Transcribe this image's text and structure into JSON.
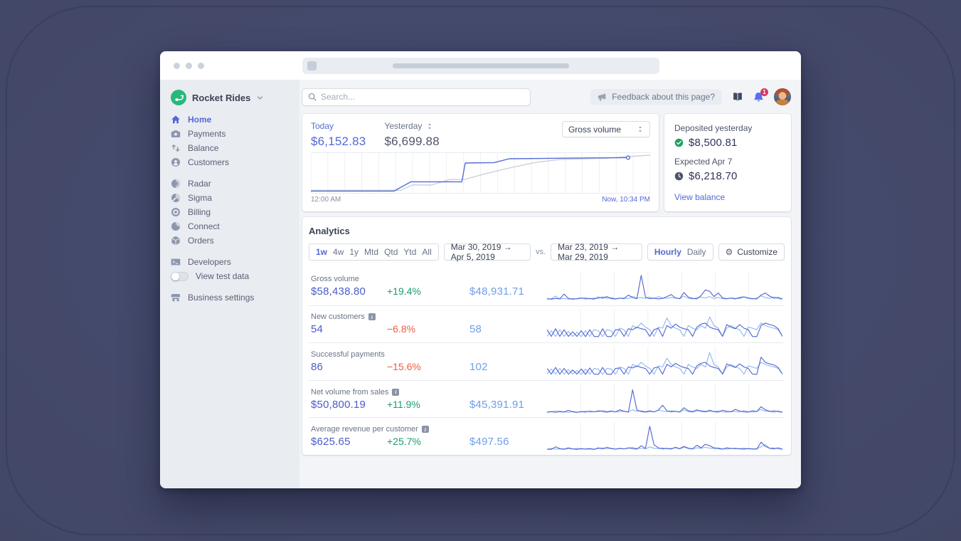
{
  "header": {
    "search_placeholder": "Search...",
    "feedback_label": "Feedback about this page?",
    "notification_count": "1"
  },
  "sidebar": {
    "account_name": "Rocket Rides",
    "groups": [
      [
        {
          "label": "Home",
          "icon": "home-icon",
          "active": true
        },
        {
          "label": "Payments",
          "icon": "payments-icon"
        },
        {
          "label": "Balance",
          "icon": "balance-icon"
        },
        {
          "label": "Customers",
          "icon": "customers-icon"
        }
      ],
      [
        {
          "label": "Radar",
          "icon": "radar-icon"
        },
        {
          "label": "Sigma",
          "icon": "sigma-icon"
        },
        {
          "label": "Billing",
          "icon": "billing-icon"
        },
        {
          "label": "Connect",
          "icon": "connect-icon"
        },
        {
          "label": "Orders",
          "icon": "orders-icon"
        }
      ],
      [
        {
          "label": "Developers",
          "icon": "developers-icon"
        },
        {
          "label": "View test data",
          "toggle": true
        }
      ],
      [
        {
          "label": "Business settings",
          "icon": "business-settings-icon"
        }
      ]
    ]
  },
  "overview": {
    "today_label": "Today",
    "today_value": "$6,152.83",
    "yesterday_label": "Yesterday",
    "yesterday_value": "$6,699.88",
    "metric_select": "Gross volume",
    "x_start": "12:00 AM",
    "x_end": "Now, 10:34 PM"
  },
  "deposits": {
    "deposited_label": "Deposited yesterday",
    "deposited_value": "$8,500.81",
    "expected_label": "Expected Apr 7",
    "expected_value": "$6,218.70",
    "link_label": "View balance"
  },
  "analytics": {
    "title": "Analytics",
    "ranges": [
      "1w",
      "4w",
      "1y",
      "Mtd",
      "Qtd",
      "Ytd",
      "All"
    ],
    "active_range": "1w",
    "date_range_current": "Mar 30, 2019 →  Apr 5, 2019",
    "vs_label": "vs.",
    "date_range_compare": "Mar 23, 2019 → Mar 29, 2019",
    "granularity": [
      "Hourly",
      "Daily"
    ],
    "active_granularity": "Hourly",
    "customize_label": "Customize",
    "metrics": [
      {
        "label": "Gross volume",
        "info": false,
        "value": "$58,438.80",
        "delta": "+19.4%",
        "delta_dir": "up",
        "compare": "$48,931.71"
      },
      {
        "label": "New customers",
        "info": true,
        "value": "54",
        "delta": "−6.8%",
        "delta_dir": "down",
        "compare": "58"
      },
      {
        "label": "Successful payments",
        "info": false,
        "value": "86",
        "delta": "−15.6%",
        "delta_dir": "down",
        "compare": "102"
      },
      {
        "label": "Net volume from sales",
        "info": true,
        "value": "$50,800.19",
        "delta": "+11.9%",
        "delta_dir": "up",
        "compare": "$45,391.91"
      },
      {
        "label": "Average revenue per customer",
        "info": true,
        "value": "$625.65",
        "delta": "+25.7%",
        "delta_dir": "up",
        "compare": "$497.56"
      }
    ]
  },
  "colors": {
    "accent": "#5469d4",
    "positive": "#1a9c6b",
    "negative": "#ec5e41",
    "compare_blue": "#6f9fe8",
    "spark_current": "#4f63cf",
    "spark_previous": "#8fb5ef",
    "today_line": "#556cd6",
    "yesterday_line": "#c9d2dc"
  },
  "chart_data": {
    "overview": {
      "type": "line",
      "title": "Gross volume, today vs yesterday",
      "x_start": "12:00 AM",
      "x_end": "Now, 10:34 PM",
      "gridlines": 20,
      "series": [
        {
          "name": "Yesterday",
          "color": "#c9d2dc",
          "points": [
            [
              0,
              0.05
            ],
            [
              0.265,
              0.05
            ],
            [
              0.3,
              0.19
            ],
            [
              0.355,
              0.185
            ],
            [
              0.41,
              0.33
            ],
            [
              0.455,
              0.335
            ],
            [
              0.505,
              0.46
            ],
            [
              0.59,
              0.64
            ],
            [
              0.665,
              0.78
            ],
            [
              0.735,
              0.85
            ],
            [
              0.87,
              0.885
            ],
            [
              1,
              0.965
            ]
          ]
        },
        {
          "name": "Today",
          "color": "#556cd6",
          "marker_end": true,
          "points": [
            [
              0,
              0.03
            ],
            [
              0.245,
              0.03
            ],
            [
              0.295,
              0.27
            ],
            [
              0.445,
              0.27
            ],
            [
              0.455,
              0.76
            ],
            [
              0.54,
              0.77
            ],
            [
              0.585,
              0.87
            ],
            [
              0.75,
              0.885
            ],
            [
              0.935,
              0.9
            ]
          ]
        }
      ]
    },
    "sparklines": [
      {
        "type": "line",
        "metric": "Gross volume",
        "gridlines": 7,
        "previous": [
          0.02,
          0.04,
          0.14,
          0.03,
          0.05,
          0.02,
          0.04,
          0.03,
          0.05,
          0.08,
          0.03,
          0.06,
          0.04,
          0.12,
          0.05,
          0.09,
          0.04,
          0.05,
          0.07,
          0.04,
          0.13,
          0.06,
          0.08,
          0.05,
          0.1,
          0.04,
          0.12,
          0.07,
          0.05,
          0.09,
          0.06,
          0.04,
          0.14,
          0.05,
          0.03,
          0.08,
          0.1,
          0.07,
          0.12,
          0.05,
          0.09,
          0.04,
          0.03,
          0.07,
          0.05,
          0.04,
          0.1,
          0.05,
          0.03,
          0.06,
          0.15,
          0.08,
          0.05,
          0.11,
          0.04,
          0.02
        ],
        "current": [
          0.04,
          0.02,
          0.05,
          0.03,
          0.22,
          0.05,
          0.02,
          0.04,
          0.07,
          0.03,
          0.05,
          0.02,
          0.1,
          0.06,
          0.12,
          0.04,
          0.03,
          0.06,
          0.04,
          0.18,
          0.08,
          0.04,
          0.95,
          0.1,
          0.04,
          0.06,
          0.03,
          0.05,
          0.12,
          0.2,
          0.07,
          0.04,
          0.28,
          0.1,
          0.05,
          0.03,
          0.16,
          0.38,
          0.33,
          0.12,
          0.26,
          0.07,
          0.04,
          0.06,
          0.03,
          0.09,
          0.11,
          0.07,
          0.04,
          0.03,
          0.18,
          0.26,
          0.14,
          0.06,
          0.09,
          0.03
        ]
      },
      {
        "type": "line",
        "metric": "New customers",
        "gridlines": 7,
        "previous": [
          0.04,
          0.26,
          0.04,
          0.3,
          0.04,
          0.24,
          0.04,
          0.2,
          0.03,
          0.26,
          0.04,
          0.3,
          0.26,
          0.03,
          0.3,
          0.26,
          0.04,
          0.36,
          0.3,
          0.04,
          0.46,
          0.36,
          0.56,
          0.4,
          0.3,
          0.04,
          0.4,
          0.36,
          0.76,
          0.46,
          0.36,
          0.3,
          0.04,
          0.46,
          0.36,
          0.3,
          0.46,
          0.36,
          0.8,
          0.46,
          0.36,
          0.04,
          0.36,
          0.46,
          0.36,
          0.3,
          0.04,
          0.4,
          0.36,
          0.3,
          0.56,
          0.46,
          0.4,
          0.36,
          0.3,
          0.04
        ],
        "current": [
          0.3,
          0.04,
          0.34,
          0.04,
          0.3,
          0.04,
          0.22,
          0.04,
          0.26,
          0.03,
          0.3,
          0.04,
          0.03,
          0.34,
          0.04,
          0.03,
          0.3,
          0.3,
          0.04,
          0.34,
          0.3,
          0.4,
          0.34,
          0.3,
          0.04,
          0.3,
          0.36,
          0.04,
          0.46,
          0.36,
          0.52,
          0.4,
          0.34,
          0.3,
          0.04,
          0.4,
          0.52,
          0.56,
          0.4,
          0.34,
          0.3,
          0.04,
          0.5,
          0.4,
          0.34,
          0.5,
          0.36,
          0.3,
          0.04,
          0.03,
          0.46,
          0.56,
          0.5,
          0.46,
          0.34,
          0.04
        ]
      },
      {
        "type": "line",
        "metric": "Successful payments",
        "gridlines": 7,
        "previous": [
          0.04,
          0.24,
          0.04,
          0.26,
          0.04,
          0.22,
          0.04,
          0.18,
          0.03,
          0.24,
          0.04,
          0.26,
          0.24,
          0.03,
          0.26,
          0.24,
          0.04,
          0.32,
          0.26,
          0.04,
          0.42,
          0.32,
          0.5,
          0.36,
          0.26,
          0.04,
          0.36,
          0.32,
          0.66,
          0.42,
          0.32,
          0.26,
          0.04,
          0.42,
          0.32,
          0.26,
          0.42,
          0.32,
          0.88,
          0.42,
          0.32,
          0.04,
          0.32,
          0.42,
          0.32,
          0.26,
          0.04,
          0.36,
          0.32,
          0.26,
          0.5,
          0.42,
          0.36,
          0.32,
          0.26,
          0.04
        ],
        "current": [
          0.26,
          0.04,
          0.3,
          0.04,
          0.26,
          0.04,
          0.2,
          0.04,
          0.24,
          0.03,
          0.28,
          0.04,
          0.03,
          0.3,
          0.04,
          0.03,
          0.26,
          0.28,
          0.04,
          0.32,
          0.28,
          0.36,
          0.3,
          0.26,
          0.04,
          0.28,
          0.32,
          0.04,
          0.42,
          0.32,
          0.46,
          0.36,
          0.3,
          0.26,
          0.04,
          0.36,
          0.46,
          0.5,
          0.36,
          0.3,
          0.26,
          0.04,
          0.44,
          0.36,
          0.3,
          0.44,
          0.32,
          0.26,
          0.04,
          0.03,
          0.7,
          0.5,
          0.44,
          0.4,
          0.3,
          0.04
        ]
      },
      {
        "type": "line",
        "metric": "Net volume from sales",
        "gridlines": 7,
        "previous": [
          0.02,
          0.04,
          0.08,
          0.03,
          0.05,
          0.02,
          0.06,
          0.03,
          0.04,
          0.07,
          0.03,
          0.05,
          0.04,
          0.1,
          0.05,
          0.08,
          0.04,
          0.05,
          0.06,
          0.04,
          0.12,
          0.06,
          0.08,
          0.05,
          0.09,
          0.04,
          0.11,
          0.07,
          0.05,
          0.08,
          0.06,
          0.04,
          0.12,
          0.05,
          0.03,
          0.07,
          0.09,
          0.06,
          0.11,
          0.05,
          0.08,
          0.04,
          0.03,
          0.06,
          0.05,
          0.04,
          0.09,
          0.05,
          0.03,
          0.06,
          0.13,
          0.07,
          0.05,
          0.1,
          0.04,
          0.02
        ],
        "current": [
          0.03,
          0.05,
          0.02,
          0.06,
          0.03,
          0.1,
          0.04,
          0.02,
          0.05,
          0.03,
          0.07,
          0.04,
          0.08,
          0.05,
          0.03,
          0.06,
          0.04,
          0.12,
          0.06,
          0.03,
          0.9,
          0.12,
          0.05,
          0.03,
          0.06,
          0.04,
          0.1,
          0.3,
          0.08,
          0.04,
          0.06,
          0.03,
          0.2,
          0.08,
          0.05,
          0.12,
          0.06,
          0.04,
          0.08,
          0.05,
          0.03,
          0.1,
          0.06,
          0.04,
          0.14,
          0.07,
          0.04,
          0.03,
          0.08,
          0.05,
          0.24,
          0.12,
          0.06,
          0.04,
          0.07,
          0.03
        ]
      },
      {
        "type": "line",
        "metric": "Average revenue per customer",
        "gridlines": 7,
        "previous": [
          0.02,
          0.06,
          0.03,
          0.04,
          0.02,
          0.05,
          0.03,
          0.06,
          0.03,
          0.04,
          0.06,
          0.03,
          0.05,
          0.08,
          0.04,
          0.07,
          0.03,
          0.05,
          0.04,
          0.06,
          0.1,
          0.05,
          0.07,
          0.04,
          0.12,
          0.06,
          0.05,
          0.08,
          0.04,
          0.06,
          0.08,
          0.04,
          0.1,
          0.05,
          0.03,
          0.08,
          0.06,
          0.1,
          0.07,
          0.05,
          0.08,
          0.04,
          0.03,
          0.06,
          0.04,
          0.05,
          0.07,
          0.04,
          0.03,
          0.05,
          0.12,
          0.2,
          0.06,
          0.08,
          0.04,
          0.02
        ],
        "current": [
          0.03,
          0.02,
          0.12,
          0.05,
          0.03,
          0.08,
          0.04,
          0.02,
          0.05,
          0.03,
          0.04,
          0.02,
          0.08,
          0.04,
          0.1,
          0.05,
          0.03,
          0.06,
          0.04,
          0.08,
          0.05,
          0.03,
          0.16,
          0.06,
          0.92,
          0.2,
          0.08,
          0.04,
          0.06,
          0.03,
          0.1,
          0.05,
          0.14,
          0.07,
          0.04,
          0.18,
          0.08,
          0.22,
          0.16,
          0.08,
          0.05,
          0.03,
          0.08,
          0.05,
          0.06,
          0.04,
          0.03,
          0.05,
          0.04,
          0.03,
          0.3,
          0.14,
          0.06,
          0.04,
          0.08,
          0.03
        ]
      }
    ]
  }
}
